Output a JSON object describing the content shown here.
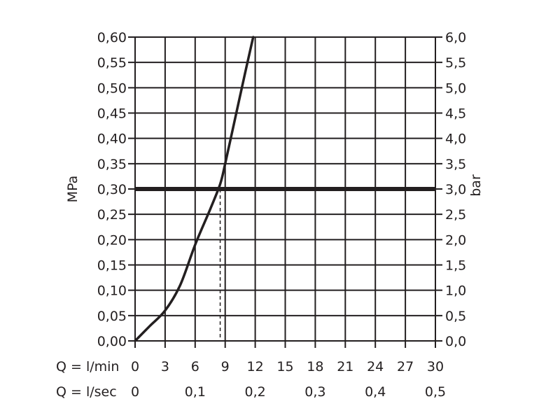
{
  "chart_data": {
    "type": "line",
    "left_axis": {
      "label": "MPa",
      "ticks": [
        "0,00",
        "0,05",
        "0,10",
        "0,15",
        "0,20",
        "0,25",
        "0,30",
        "0,35",
        "0,40",
        "0,45",
        "0,50",
        "0,55",
        "0,60"
      ],
      "range": [
        0,
        0.6
      ]
    },
    "right_axis": {
      "label": "bar",
      "ticks": [
        "0,0",
        "0,5",
        "1,0",
        "1,5",
        "2,0",
        "2,5",
        "3,0",
        "3,5",
        "4,0",
        "4,5",
        "5,0",
        "5,5",
        "6,0"
      ],
      "range": [
        0,
        6
      ]
    },
    "x_axis_lmin": {
      "label": "Q = l/min",
      "ticks": [
        "0",
        "3",
        "6",
        "9",
        "12",
        "15",
        "18",
        "21",
        "24",
        "27",
        "30"
      ],
      "range": [
        0,
        30
      ]
    },
    "x_axis_lsec": {
      "label": "Q = l/sec",
      "ticks": [
        {
          "label": "0",
          "at": 0
        },
        {
          "label": "0,1",
          "at": 6
        },
        {
          "label": "0,2",
          "at": 12
        },
        {
          "label": "0,3",
          "at": 18
        },
        {
          "label": "0,4",
          "at": 24
        },
        {
          "label": "0,5",
          "at": 30
        }
      ]
    },
    "series": [
      {
        "x": [
          0,
          1.5,
          3,
          4.5,
          6,
          7.5,
          8.5,
          9,
          10,
          11,
          11.8
        ],
        "y": [
          0,
          0.03,
          0.06,
          0.11,
          0.19,
          0.26,
          0.31,
          0.35,
          0.44,
          0.53,
          0.6
        ]
      }
    ],
    "reference_line": {
      "y": 0.3
    },
    "marker_line": {
      "x": 8.5,
      "y": 0.3
    },
    "grid": true,
    "colors": {
      "line": "#231f20",
      "grid": "#231f20"
    }
  }
}
